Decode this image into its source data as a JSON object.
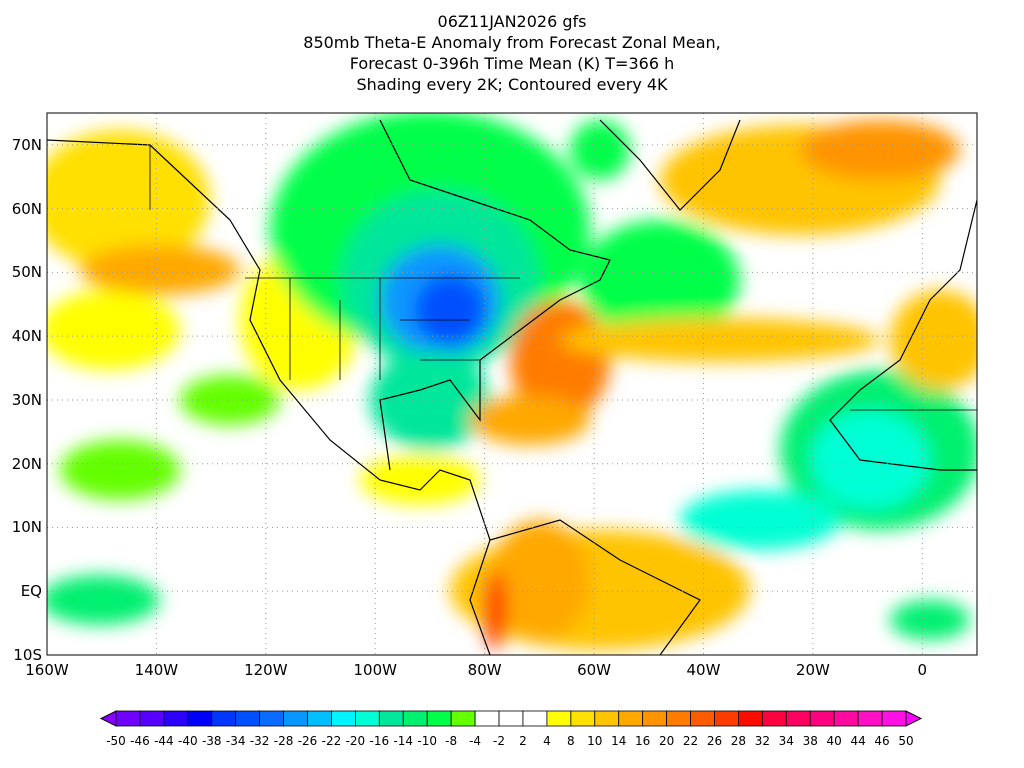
{
  "title_lines": [
    "06Z11JAN2026 gfs",
    "850mb Theta-E Anomaly from Forecast Zonal Mean,",
    "Forecast 0-396h Time Mean (K) T=366 h",
    "Shading every 2K; Contoured every 4K"
  ],
  "map": {
    "lon_range": [
      -160,
      10
    ],
    "lat_range": [
      -10,
      75
    ],
    "lat_ticks": [
      {
        "v": 70,
        "l": "70N"
      },
      {
        "v": 60,
        "l": "60N"
      },
      {
        "v": 50,
        "l": "50N"
      },
      {
        "v": 40,
        "l": "40N"
      },
      {
        "v": 30,
        "l": "30N"
      },
      {
        "v": 20,
        "l": "20N"
      },
      {
        "v": 10,
        "l": "10N"
      },
      {
        "v": 0,
        "l": "EQ"
      },
      {
        "v": -10,
        "l": "10S"
      }
    ],
    "lon_ticks": [
      {
        "v": -160,
        "l": "160W"
      },
      {
        "v": -140,
        "l": "140W"
      },
      {
        "v": -120,
        "l": "120W"
      },
      {
        "v": -100,
        "l": "100W"
      },
      {
        "v": -80,
        "l": "80W"
      },
      {
        "v": -60,
        "l": "60W"
      },
      {
        "v": -40,
        "l": "40W"
      },
      {
        "v": -20,
        "l": "20W"
      },
      {
        "v": 0,
        "l": "0"
      }
    ]
  },
  "colorbar": {
    "labels": [
      "-50",
      "-46",
      "-44",
      "-40",
      "-38",
      "-34",
      "-32",
      "-28",
      "-26",
      "-22",
      "-20",
      "-16",
      "-14",
      "-10",
      "-8",
      "-4",
      "-2",
      "2",
      "4",
      "8",
      "10",
      "14",
      "16",
      "20",
      "22",
      "26",
      "28",
      "32",
      "34",
      "38",
      "40",
      "44",
      "46",
      "50"
    ],
    "colors": [
      "#7000ff",
      "#5800ff",
      "#2c00ff",
      "#0000ff",
      "#0036ff",
      "#0050ff",
      "#0a6cff",
      "#0a96ff",
      "#00beff",
      "#00f4ff",
      "#00ffd4",
      "#00e69a",
      "#00f070",
      "#00ff48",
      "#64ff00",
      "#ffffff",
      "#ffffff",
      "#ffffff",
      "#ffff00",
      "#ffe000",
      "#ffc400",
      "#ffa800",
      "#ff9400",
      "#ff7c00",
      "#ff5c00",
      "#ff3c00",
      "#ff0c00",
      "#ff0040",
      "#ff0060",
      "#ff0080",
      "#ff0aa0",
      "#ff10c4",
      "#ff10e4"
    ],
    "under": "#8a00ff",
    "over": "#ff00ff"
  }
}
